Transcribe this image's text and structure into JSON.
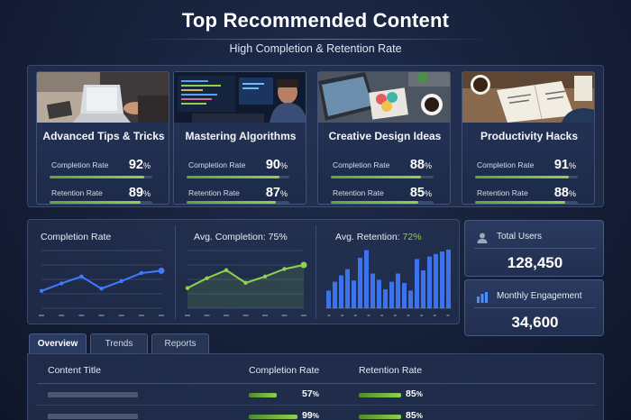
{
  "header": {
    "title": "Top Recommended Content",
    "subtitle": "High Completion & Retention Rate"
  },
  "cards": [
    {
      "title": "Advanced Tips & Tricks",
      "completion_label": "Completion Rate",
      "completion": "92",
      "retention_label": "Retention Rate",
      "retention": "89",
      "completion_fraction": 0.92,
      "retention_fraction": 0.89,
      "image": "laptop-notebook-photo"
    },
    {
      "title": "Mastering Algorithms",
      "completion_label": "Completion Rate",
      "completion": "90",
      "retention_label": "Retention Rate",
      "retention": "87",
      "completion_fraction": 0.9,
      "retention_fraction": 0.87,
      "image": "programmer-code-screens-photo"
    },
    {
      "title": "Creative Design Ideas",
      "completion_label": "Completion Rate",
      "completion": "88",
      "retention_label": "Retention Rate",
      "retention": "85",
      "completion_fraction": 0.88,
      "retention_fraction": 0.85,
      "image": "design-desk-coffee-photo"
    },
    {
      "title": "Productivity Hacks",
      "completion_label": "Completion Rate",
      "completion": "91",
      "retention_label": "Retention Rate",
      "retention": "88",
      "completion_fraction": 0.91,
      "retention_fraction": 0.88,
      "image": "writing-notebook-coffee-photo"
    }
  ],
  "percent_sign": "%",
  "charts": {
    "completion_title": "Completion Rate",
    "avg_completion_title": "Avg. Completion: 75%",
    "avg_retention_prefix": "Avg. Retention: ",
    "avg_retention_value": "72%"
  },
  "chart_data": [
    {
      "type": "line",
      "title": "Completion Rate",
      "x": [
        1,
        2,
        3,
        4,
        5,
        6,
        7
      ],
      "values": [
        30,
        43,
        55,
        34,
        47,
        61,
        65
      ],
      "ylim": [
        0,
        100
      ],
      "grid": true,
      "color": "#3f7bff"
    },
    {
      "type": "area",
      "title": "Avg. Completion: 75%",
      "x": [
        1,
        2,
        3,
        4,
        5,
        6,
        7
      ],
      "values": [
        35,
        52,
        66,
        44,
        55,
        68,
        75
      ],
      "ylim": [
        0,
        100
      ],
      "grid": true,
      "color": "#8fd24e"
    },
    {
      "type": "bar",
      "title": "Avg. Retention: 72%",
      "x": [
        1,
        2,
        3,
        4,
        5,
        6,
        7,
        8,
        9,
        10,
        11,
        12,
        13,
        14,
        15,
        16,
        17,
        18,
        19,
        20
      ],
      "values": [
        28,
        42,
        52,
        62,
        44,
        80,
        92,
        55,
        45,
        30,
        42,
        55,
        40,
        28,
        78,
        60,
        82,
        86,
        90,
        93
      ],
      "ylim": [
        0,
        100
      ],
      "grid": false,
      "color": "#3f7bff"
    }
  ],
  "stats": [
    {
      "label": "Total Users",
      "value": "128,450",
      "icon": "user-icon"
    },
    {
      "label": "Monthly Engagement",
      "value": "34,600",
      "icon": "bar-chart-icon"
    }
  ],
  "tabs": [
    {
      "label": "Overview",
      "active": true
    },
    {
      "label": "Trends",
      "active": false
    },
    {
      "label": "Reports",
      "active": false
    }
  ],
  "table": {
    "headers": [
      "Content Title",
      "Completion Rate",
      "Retention Rate"
    ],
    "rows": [
      {
        "completion": "57",
        "retention": "85",
        "completion_fraction": 0.57,
        "retention_fraction": 0.85
      },
      {
        "completion": "99",
        "retention": "85",
        "completion_fraction": 0.99,
        "retention_fraction": 0.85
      }
    ]
  },
  "colors": {
    "accent_green": "#8fd24e",
    "accent_blue": "#3f7bff",
    "background": "#131c33"
  }
}
